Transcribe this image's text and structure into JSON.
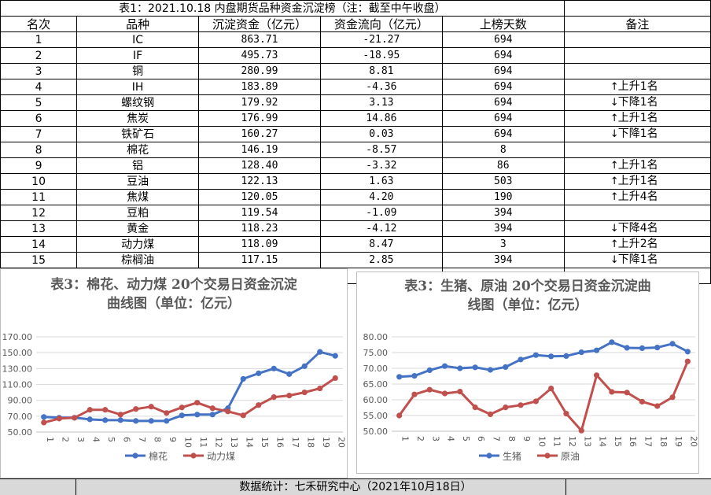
{
  "table": {
    "title": "表1：2021.10.18 内盘期货品种资金沉淀榜（注：截至中午收盘）",
    "headers": [
      "名次",
      "品种",
      "沉淀资金（亿元）",
      "资金流向（亿元）",
      "上榜天数",
      "备注"
    ],
    "rows": [
      {
        "rank": "1",
        "name": "IC",
        "fund": "863.71",
        "flow": "-21.27",
        "days": "694",
        "note_arrow": "",
        "note": ""
      },
      {
        "rank": "2",
        "name": "IF",
        "fund": "495.73",
        "flow": "-18.95",
        "days": "694",
        "note_arrow": "",
        "note": ""
      },
      {
        "rank": "3",
        "name": "铜",
        "fund": "280.99",
        "flow": "8.81",
        "days": "694",
        "note_arrow": "",
        "note": ""
      },
      {
        "rank": "4",
        "name": "IH",
        "fund": "183.89",
        "flow": "-4.36",
        "days": "694",
        "note_arrow": "↑",
        "note": "上升1名"
      },
      {
        "rank": "5",
        "name": "螺纹钢",
        "fund": "179.92",
        "flow": "3.13",
        "days": "694",
        "note_arrow": "↓",
        "note": "下降1名"
      },
      {
        "rank": "6",
        "name": "焦炭",
        "fund": "176.99",
        "flow": "14.86",
        "days": "694",
        "note_arrow": "↑",
        "note": "上升1名"
      },
      {
        "rank": "7",
        "name": "铁矿石",
        "fund": "160.27",
        "flow": "0.03",
        "days": "694",
        "note_arrow": "↓",
        "note": "下降1名"
      },
      {
        "rank": "8",
        "name": "棉花",
        "fund": "146.19",
        "flow": "-8.57",
        "days": "8",
        "note_arrow": "",
        "note": ""
      },
      {
        "rank": "9",
        "name": "铝",
        "fund": "128.40",
        "flow": "-3.32",
        "days": "86",
        "note_arrow": "↑",
        "note": "上升1名"
      },
      {
        "rank": "10",
        "name": "豆油",
        "fund": "122.13",
        "flow": "1.63",
        "days": "503",
        "note_arrow": "↑",
        "note": "上升1名"
      },
      {
        "rank": "11",
        "name": "焦煤",
        "fund": "120.05",
        "flow": "4.20",
        "days": "190",
        "note_arrow": "↑",
        "note": "上升4名"
      },
      {
        "rank": "12",
        "name": "豆粕",
        "fund": "119.54",
        "flow": "-1.09",
        "days": "394",
        "note_arrow": "",
        "note": ""
      },
      {
        "rank": "13",
        "name": "黄金",
        "fund": "118.23",
        "flow": "-4.12",
        "days": "394",
        "note_arrow": "↓",
        "note": "下降4名"
      },
      {
        "rank": "14",
        "name": "动力煤",
        "fund": "118.09",
        "flow": "8.47",
        "days": "3",
        "note_arrow": "↑",
        "note": "上升2名"
      },
      {
        "rank": "15",
        "name": "棕榈油",
        "fund": "117.15",
        "flow": "2.85",
        "days": "394",
        "note_arrow": "↓",
        "note": "下降1名"
      }
    ]
  },
  "colors": {
    "blue": "#4472c4",
    "red": "#c0504d",
    "grid": "#d9d9d9",
    "axis_text": "#595959",
    "footer_bg": "#d9d9d9"
  },
  "chart_data": [
    {
      "type": "line",
      "title": "表3：棉花、动力煤 20个交易日资金沉淀曲线图（单位：亿元）",
      "title_lines": [
        "表3：棉花、动力煤 20个交易日资金沉淀",
        "曲线图（单位：亿元）"
      ],
      "x": [
        "1",
        "2",
        "3",
        "4",
        "5",
        "6",
        "7",
        "8",
        "9",
        "10",
        "11",
        "12",
        "13",
        "14",
        "15",
        "16",
        "17",
        "18",
        "19",
        "20"
      ],
      "yticks": [
        "170.00",
        "150.00",
        "130.00",
        "110.00",
        "90.00",
        "70.00",
        "50.00"
      ],
      "ylim": [
        50,
        170
      ],
      "grid": true,
      "legend_position": "bottom",
      "series": [
        {
          "name": "棉花",
          "color": "#4472c4",
          "values": [
            69,
            68,
            68,
            66,
            65,
            65,
            64,
            64,
            64,
            71,
            72,
            72,
            80,
            117,
            124,
            130,
            123,
            133,
            151,
            146
          ]
        },
        {
          "name": "动力煤",
          "color": "#c0504d",
          "values": [
            62,
            67,
            68,
            78,
            78,
            72,
            79,
            82,
            74,
            81,
            87,
            80,
            76,
            71,
            84,
            94,
            96,
            100,
            105,
            118
          ]
        }
      ]
    },
    {
      "type": "line",
      "title": "表3：生猪、原油 20个交易日资金沉淀曲线图（单位：亿元）",
      "title_lines": [
        "表3：生猪、原油 20个交易日资金沉淀曲",
        "线图（单位：亿元）"
      ],
      "x": [
        "1",
        "2",
        "3",
        "4",
        "5",
        "6",
        "7",
        "8",
        "9",
        "10",
        "11",
        "12",
        "13",
        "14",
        "15",
        "16",
        "17",
        "18",
        "19",
        "20"
      ],
      "yticks": [
        "80.00",
        "75.00",
        "70.00",
        "65.00",
        "60.00",
        "55.00",
        "50.00"
      ],
      "ylim": [
        50,
        80
      ],
      "grid": true,
      "legend_position": "bottom",
      "series": [
        {
          "name": "生猪",
          "color": "#4472c4",
          "values": [
            67.3,
            67.6,
            69.4,
            70.7,
            70,
            70.3,
            69.5,
            70.4,
            72.8,
            74.2,
            73.8,
            73.9,
            75.1,
            75.7,
            78.3,
            76.5,
            76.4,
            76.6,
            77.8,
            75.3
          ]
        },
        {
          "name": "原油",
          "color": "#c0504d",
          "values": [
            55,
            61.7,
            63.2,
            62,
            62.6,
            57.6,
            55.4,
            57.6,
            58.3,
            59.5,
            63.6,
            55.6,
            50.2,
            67.8,
            62.5,
            62.3,
            59.4,
            58,
            60.8,
            72.2
          ]
        }
      ]
    }
  ],
  "footer": {
    "text": "数据统计：七禾研究中心（2021年10月18日）"
  }
}
